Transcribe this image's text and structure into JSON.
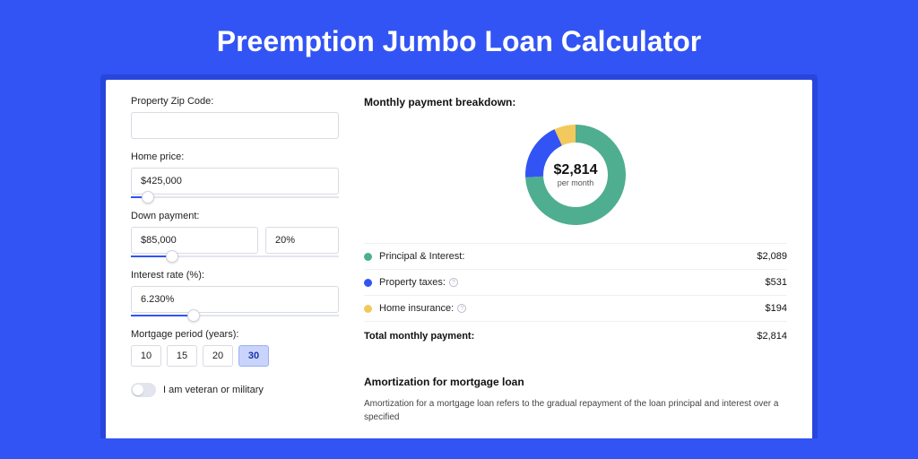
{
  "colors": {
    "page_bg": "#3254f4",
    "shadow": "#2846db",
    "green": "#4fae8f",
    "blue": "#3254f4",
    "yellow": "#f2c95c"
  },
  "title": "Preemption Jumbo Loan Calculator",
  "left": {
    "zip": {
      "label": "Property Zip Code:",
      "value": ""
    },
    "home_price": {
      "label": "Home price:",
      "value": "$425,000",
      "slider_pct": 8
    },
    "down_payment": {
      "label": "Down payment:",
      "value": "$85,000",
      "pct": "20%",
      "slider_pct": 20
    },
    "interest": {
      "label": "Interest rate (%):",
      "value": "6.230%",
      "slider_pct": 30
    },
    "period": {
      "label": "Mortgage period (years):",
      "options": [
        "10",
        "15",
        "20",
        "30"
      ],
      "active": "30"
    },
    "veteran": {
      "label": "I am veteran or military",
      "on": false
    }
  },
  "right": {
    "section_title": "Monthly payment breakdown:",
    "donut": {
      "amount": "$2,814",
      "sub": "per month",
      "slices": [
        {
          "color": "#4fae8f",
          "pct": 74.2
        },
        {
          "color": "#3254f4",
          "pct": 18.9
        },
        {
          "color": "#f2c95c",
          "pct": 6.9
        }
      ]
    },
    "items": [
      {
        "label": "Principal & Interest:",
        "value": "$2,089",
        "color": "#4fae8f",
        "info": false
      },
      {
        "label": "Property taxes:",
        "value": "$531",
        "color": "#3254f4",
        "info": true
      },
      {
        "label": "Home insurance:",
        "value": "$194",
        "color": "#f2c95c",
        "info": true
      }
    ],
    "total": {
      "label": "Total monthly payment:",
      "value": "$2,814"
    },
    "amort_title": "Amortization for mortgage loan",
    "amort_text": "Amortization for a mortgage loan refers to the gradual repayment of the loan principal and interest over a specified"
  }
}
